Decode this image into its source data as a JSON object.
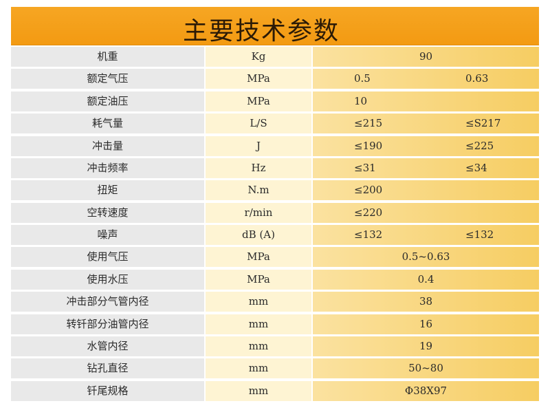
{
  "title": "主要技术参数",
  "rows": [
    {
      "name": "机重",
      "unit": "Kg",
      "mode": "center",
      "v1": "90",
      "v2": ""
    },
    {
      "name": "额定气压",
      "unit": "MPa",
      "mode": "split",
      "v1": "0.5",
      "v2": "0.63"
    },
    {
      "name": "额定油压",
      "unit": "MPa",
      "mode": "split",
      "v1": "10",
      "v2": ""
    },
    {
      "name": "耗气量",
      "unit": "L/S",
      "mode": "split",
      "v1": "≤215",
      "v2": "≤S217"
    },
    {
      "name": "冲击量",
      "unit": "J",
      "mode": "split",
      "v1": "≤190",
      "v2": "≤225"
    },
    {
      "name": "冲击频率",
      "unit": "Hz",
      "mode": "split",
      "v1": "≤31",
      "v2": "≤34"
    },
    {
      "name": "扭矩",
      "unit": "N.m",
      "mode": "split",
      "v1": "≤200",
      "v2": ""
    },
    {
      "name": "空转速度",
      "unit": "r/min",
      "mode": "split",
      "v1": "≤220",
      "v2": ""
    },
    {
      "name": "噪声",
      "unit": "dB (A)",
      "mode": "split",
      "v1": "≤132",
      "v2": "≤132"
    },
    {
      "name": "使用气压",
      "unit": "MPa",
      "mode": "center",
      "v1": "0.5~0.63",
      "v2": ""
    },
    {
      "name": "使用水压",
      "unit": "MPa",
      "mode": "center",
      "v1": "0.4",
      "v2": ""
    },
    {
      "name": "冲击部分气管内径",
      "unit": "mm",
      "mode": "center",
      "v1": "38",
      "v2": ""
    },
    {
      "name": "转钎部分油管内径",
      "unit": "mm",
      "mode": "center",
      "v1": "16",
      "v2": ""
    },
    {
      "name": "水管内径",
      "unit": "mm",
      "mode": "center",
      "v1": "19",
      "v2": ""
    },
    {
      "name": "钻孔直径",
      "unit": "mm",
      "mode": "center",
      "v1": "50~80",
      "v2": ""
    },
    {
      "name": "钎尾规格",
      "unit": "mm",
      "mode": "center",
      "v1": "Φ38X97",
      "v2": ""
    }
  ]
}
